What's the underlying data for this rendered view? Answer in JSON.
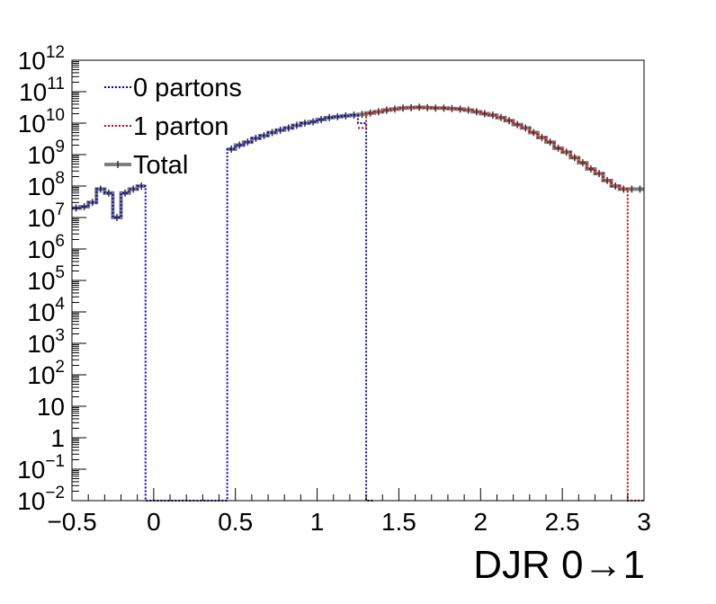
{
  "chart_data": {
    "type": "line",
    "title": "",
    "xlabel": "DJR 0→1",
    "ylabel": "",
    "xlim": [
      -0.5,
      3
    ],
    "ylim": [
      0.01,
      1000000000000.0
    ],
    "y_scale": "log",
    "grid": false,
    "legend_position": "top-left",
    "x_ticks": [
      {
        "value": -0.5,
        "label": "−0.5"
      },
      {
        "value": 0,
        "label": "0"
      },
      {
        "value": 0.5,
        "label": "0.5"
      },
      {
        "value": 1,
        "label": "1"
      },
      {
        "value": 1.5,
        "label": "1.5"
      },
      {
        "value": 2,
        "label": "2"
      },
      {
        "value": 2.5,
        "label": "2.5"
      },
      {
        "value": 3,
        "label": "3"
      }
    ],
    "y_ticks": [
      {
        "exp": -2,
        "base": "10",
        "sup": "−2"
      },
      {
        "exp": -1,
        "base": "10",
        "sup": "−1"
      },
      {
        "exp": 0,
        "base": "1",
        "sup": ""
      },
      {
        "exp": 1,
        "base": "10",
        "sup": ""
      },
      {
        "exp": 2,
        "base": "10",
        "sup": "2"
      },
      {
        "exp": 3,
        "base": "10",
        "sup": "3"
      },
      {
        "exp": 4,
        "base": "10",
        "sup": "4"
      },
      {
        "exp": 5,
        "base": "10",
        "sup": "5"
      },
      {
        "exp": 6,
        "base": "10",
        "sup": "6"
      },
      {
        "exp": 7,
        "base": "10",
        "sup": "7"
      },
      {
        "exp": 8,
        "base": "10",
        "sup": "8"
      },
      {
        "exp": 9,
        "base": "10",
        "sup": "9"
      },
      {
        "exp": 10,
        "base": "10",
        "sup": "10"
      },
      {
        "exp": 11,
        "base": "10",
        "sup": "11"
      },
      {
        "exp": 12,
        "base": "10",
        "sup": "12"
      }
    ],
    "bin_width": 0.05,
    "series": [
      {
        "name": "0 partons",
        "color": "#0000cc",
        "style": "dotted",
        "x": [
          -0.5,
          -0.45,
          -0.4,
          -0.35,
          -0.3,
          -0.25,
          -0.2,
          -0.15,
          -0.1,
          -0.05,
          0,
          0.05,
          0.1,
          0.15,
          0.2,
          0.25,
          0.3,
          0.35,
          0.4,
          0.45,
          0.5,
          0.55,
          0.6,
          0.65,
          0.7,
          0.75,
          0.8,
          0.85,
          0.9,
          0.95,
          1,
          1.05,
          1.1,
          1.15,
          1.2,
          1.25,
          1.3
        ],
        "values": [
          20000000.0,
          22000000.0,
          30000000.0,
          80000000.0,
          60000000.0,
          10000000.0,
          60000000.0,
          80000000.0,
          100000000.0,
          0.01,
          0.01,
          0.01,
          0.01,
          0.01,
          0.01,
          0.01,
          0.01,
          0.01,
          0.01,
          1500000000.0,
          2000000000.0,
          2500000000.0,
          3300000000.0,
          4000000000.0,
          5000000000.0,
          6000000000.0,
          7000000000.0,
          8500000000.0,
          10000000000.0,
          11000000000.0,
          13000000000.0,
          15000000000.0,
          16000000000.0,
          17000000000.0,
          18000000000.0,
          10000000000.0,
          0.01
        ]
      },
      {
        "name": "1 parton",
        "color": "#cc0000",
        "style": "dotted",
        "x": [
          1.25,
          1.3,
          1.35,
          1.4,
          1.45,
          1.5,
          1.55,
          1.6,
          1.65,
          1.7,
          1.75,
          1.8,
          1.85,
          1.9,
          1.95,
          2,
          2.05,
          2.1,
          2.15,
          2.2,
          2.25,
          2.3,
          2.35,
          2.4,
          2.45,
          2.5,
          2.55,
          2.6,
          2.65,
          2.7,
          2.75,
          2.8,
          2.85,
          2.9,
          2.95
        ],
        "values": [
          7000000000.0,
          21000000000.0,
          23000000000.0,
          26000000000.0,
          28000000000.0,
          30000000000.0,
          31000000000.0,
          32000000000.0,
          31000000000.0,
          30000000000.0,
          30000000000.0,
          29000000000.0,
          28000000000.0,
          26000000000.0,
          23000000000.0,
          20000000000.0,
          18000000000.0,
          15000000000.0,
          12000000000.0,
          9000000000.0,
          7000000000.0,
          5000000000.0,
          3500000000.0,
          2500000000.0,
          1600000000.0,
          1200000000.0,
          800000000.0,
          550000000.0,
          350000000.0,
          250000000.0,
          150000000.0,
          100000000.0,
          80000000.0,
          0.01,
          0.01
        ]
      },
      {
        "name": "Total",
        "color": "#7f7f7f",
        "style": "solid",
        "x": [
          -0.5,
          -0.45,
          -0.4,
          -0.35,
          -0.3,
          -0.25,
          -0.2,
          -0.15,
          -0.1,
          0.45,
          0.5,
          0.55,
          0.6,
          0.65,
          0.7,
          0.75,
          0.8,
          0.85,
          0.9,
          0.95,
          1,
          1.05,
          1.1,
          1.15,
          1.2,
          1.25,
          1.3,
          1.35,
          1.4,
          1.45,
          1.5,
          1.55,
          1.6,
          1.65,
          1.7,
          1.75,
          1.8,
          1.85,
          1.9,
          1.95,
          2,
          2.05,
          2.1,
          2.15,
          2.2,
          2.25,
          2.3,
          2.35,
          2.4,
          2.45,
          2.5,
          2.55,
          2.6,
          2.65,
          2.7,
          2.75,
          2.8,
          2.85,
          2.9,
          2.95
        ],
        "values": [
          20000000.0,
          22000000.0,
          30000000.0,
          80000000.0,
          60000000.0,
          10000000.0,
          60000000.0,
          80000000.0,
          100000000.0,
          1500000000.0,
          2000000000.0,
          2500000000.0,
          3300000000.0,
          4000000000.0,
          5000000000.0,
          6000000000.0,
          7000000000.0,
          8500000000.0,
          10000000000.0,
          11000000000.0,
          13000000000.0,
          15000000000.0,
          16000000000.0,
          17000000000.0,
          18000000000.0,
          19000000000.0,
          21000000000.0,
          23000000000.0,
          26000000000.0,
          28000000000.0,
          30000000000.0,
          31000000000.0,
          32000000000.0,
          31000000000.0,
          30000000000.0,
          30000000000.0,
          29000000000.0,
          28000000000.0,
          26000000000.0,
          23000000000.0,
          20000000000.0,
          18000000000.0,
          15000000000.0,
          12000000000.0,
          9000000000.0,
          7000000000.0,
          5000000000.0,
          3500000000.0,
          2500000000.0,
          1600000000.0,
          1200000000.0,
          800000000.0,
          550000000.0,
          350000000.0,
          250000000.0,
          150000000.0,
          100000000.0,
          80000000.0,
          80000000.0,
          80000000.0
        ]
      }
    ]
  }
}
